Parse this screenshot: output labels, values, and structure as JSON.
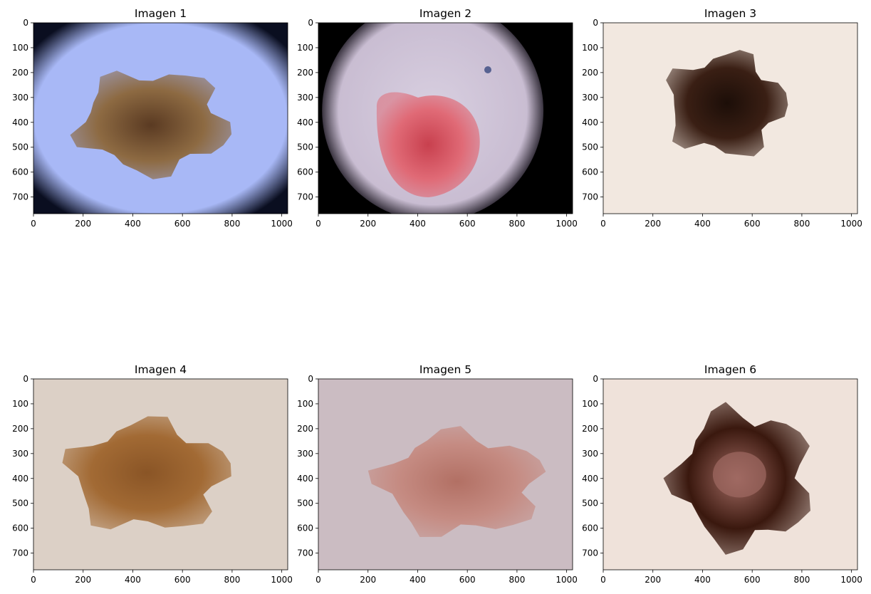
{
  "panels": [
    {
      "title": "Imagen 1",
      "skin": "#a8b8f6",
      "vignette": "#0a0e20",
      "lesion": "#8d6a42",
      "core": "#5a3a22",
      "view": "wide"
    },
    {
      "title": "Imagen 2",
      "skin": "#c9bdd2",
      "vignette": "#000000",
      "lesion": "#e06a76",
      "core": "#c8404e",
      "view": "circle"
    },
    {
      "title": "Imagen 3",
      "skin": "#f2e8e0",
      "vignette": "#f2e8e0",
      "lesion": "#3a1f14",
      "core": "#1c0e08",
      "view": "plain"
    },
    {
      "title": "Imagen 4",
      "skin": "#dcd0c6",
      "vignette": "#dcd0c6",
      "lesion": "#a26a34",
      "core": "#8a5526",
      "view": "plain"
    },
    {
      "title": "Imagen 5",
      "skin": "#cbbcc2",
      "vignette": "#cbbcc2",
      "lesion": "#c58b82",
      "core": "#b27064",
      "view": "plain"
    },
    {
      "title": "Imagen 6",
      "skin": "#efe2da",
      "vignette": "#efe2da",
      "lesion": "#3a180e",
      "core": "#a06a62",
      "view": "plain"
    }
  ],
  "axes": {
    "x_ticks": [
      "0",
      "200",
      "400",
      "600",
      "800",
      "1000"
    ],
    "y_ticks": [
      "0",
      "100",
      "200",
      "300",
      "400",
      "500",
      "600",
      "700"
    ],
    "x_range": [
      0,
      1024
    ],
    "y_range": [
      0,
      767
    ]
  }
}
